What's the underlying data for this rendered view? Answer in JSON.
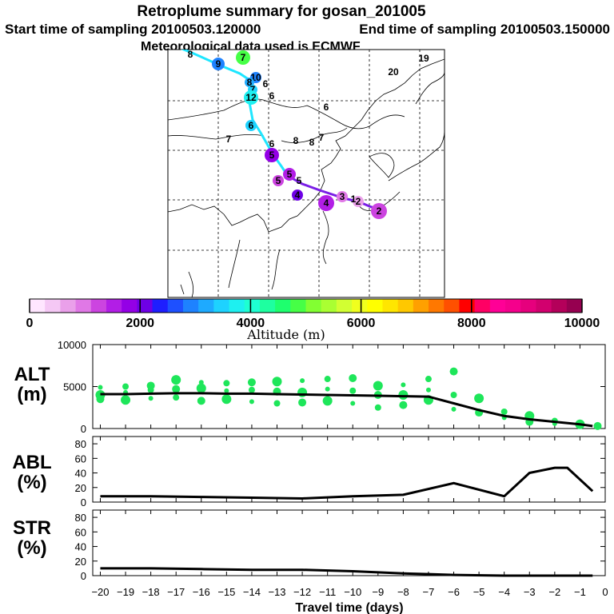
{
  "header": {
    "title": "Retroplume summary for gosan_201005",
    "start_time": "Start time of sampling 20100503.120000",
    "end_time": "End time of sampling 20100503.150000",
    "meteo": "Meteorological data used is ECMWF"
  },
  "colorbar": {
    "label": "Altitude (m)",
    "ticks": [
      "0",
      "2000",
      "4000",
      "6000",
      "8000",
      "10000"
    ],
    "colors": [
      "#ffe6ff",
      "#f5c8f5",
      "#eaa0ea",
      "#e078e6",
      "#cc44e0",
      "#b21ee6",
      "#9400e6",
      "#6e00e6",
      "#1e1eff",
      "#1e50ff",
      "#1e82ff",
      "#1eaaff",
      "#1ed2ff",
      "#1ef0f0",
      "#1effd2",
      "#1effa0",
      "#1eff6e",
      "#46ff46",
      "#82ff32",
      "#aaff32",
      "#d2ff32",
      "#f0ff1e",
      "#ffff00",
      "#ffe600",
      "#ffc800",
      "#ffa000",
      "#ff7800",
      "#ff5000",
      "#ff0000",
      "#ff0064",
      "#ff0096",
      "#f5008c",
      "#e6007d",
      "#d2006e",
      "#b4005a",
      "#960050"
    ]
  },
  "map": {
    "markers": [
      {
        "t": "8",
        "c": "#1ef0f0"
      },
      {
        "t": "7",
        "c": "#46ff46"
      },
      {
        "t": "9",
        "c": "#1e82ff"
      },
      {
        "t": "10",
        "c": "#1e82ff"
      },
      {
        "t": "8",
        "c": "#1eaaff"
      },
      {
        "t": "6",
        "c": "#1eff6e"
      },
      {
        "t": "7",
        "c": "#1ed2ff"
      },
      {
        "t": "12",
        "c": "#1ef0f0"
      },
      {
        "t": "6",
        "c": "#1eaaff"
      },
      {
        "t": "6",
        "c": "#1ed2ff"
      },
      {
        "t": "6",
        "c": "#1ed2ff"
      },
      {
        "t": "5",
        "c": "#9400e6"
      },
      {
        "t": "5",
        "c": "#b21ee6"
      },
      {
        "t": "5",
        "c": "#cc44e0"
      },
      {
        "t": "5",
        "c": "#cc44e0"
      },
      {
        "t": "4",
        "c": "#6e00e6"
      },
      {
        "t": "4",
        "c": "#b21ee6"
      },
      {
        "t": "3",
        "c": "#e078e6"
      },
      {
        "t": "2",
        "c": "#eaa0ea"
      },
      {
        "t": "2",
        "c": "#cc44e0"
      },
      {
        "t": "1",
        "c": "#f5c8f5"
      },
      {
        "t": "6",
        "c": "#1ef0f0"
      },
      {
        "t": "8",
        "c": "#1e82ff"
      },
      {
        "t": "8",
        "c": "#1ed2ff"
      },
      {
        "t": "7",
        "c": "#1ed2ff"
      },
      {
        "t": "7",
        "c": "#1ed2ff"
      },
      {
        "t": "20",
        "c": "#82ff32"
      },
      {
        "t": "19",
        "c": "#82ff32"
      }
    ]
  },
  "chart_data": [
    {
      "type": "scatter",
      "title": "ALT",
      "ylabel": "ALT (m)",
      "ylabel_top": "ALT",
      "ylabel_bottom": "(m)",
      "xlabel": "Travel time (days)",
      "xlim": [
        -20.3,
        0
      ],
      "ylim": [
        0,
        10000
      ],
      "yticks": [
        "10000",
        "5000",
        "0"
      ],
      "line": {
        "x": [
          -20,
          -19,
          -18,
          -17,
          -16,
          -15,
          -14,
          -13,
          -12,
          -11,
          -10,
          -9,
          -8,
          -7,
          -6,
          -5,
          -4,
          -3,
          -2,
          -1,
          -0.5
        ],
        "y": [
          4100,
          4100,
          4150,
          4200,
          4200,
          4150,
          4150,
          4100,
          4050,
          4000,
          3950,
          3900,
          3850,
          3800,
          3000,
          2200,
          1500,
          1100,
          800,
          500,
          300
        ]
      },
      "points": [
        {
          "x": -20,
          "y": 4900
        },
        {
          "x": -20,
          "y": 4000
        },
        {
          "x": -20,
          "y": 3500
        },
        {
          "x": -19,
          "y": 5000
        },
        {
          "x": -19,
          "y": 4300
        },
        {
          "x": -19,
          "y": 3400
        },
        {
          "x": -18,
          "y": 5100
        },
        {
          "x": -18,
          "y": 4600
        },
        {
          "x": -18,
          "y": 3600
        },
        {
          "x": -17,
          "y": 5800
        },
        {
          "x": -17,
          "y": 4700
        },
        {
          "x": -17,
          "y": 3700
        },
        {
          "x": -16,
          "y": 5500
        },
        {
          "x": -16,
          "y": 4800
        },
        {
          "x": -16,
          "y": 3300
        },
        {
          "x": -15,
          "y": 5400
        },
        {
          "x": -15,
          "y": 4500
        },
        {
          "x": -15,
          "y": 3500
        },
        {
          "x": -14,
          "y": 5500
        },
        {
          "x": -14,
          "y": 4600
        },
        {
          "x": -14,
          "y": 3200
        },
        {
          "x": -13,
          "y": 5600
        },
        {
          "x": -13,
          "y": 4400
        },
        {
          "x": -13,
          "y": 3000
        },
        {
          "x": -12,
          "y": 5700
        },
        {
          "x": -12,
          "y": 4300
        },
        {
          "x": -12,
          "y": 3100
        },
        {
          "x": -11,
          "y": 5900
        },
        {
          "x": -11,
          "y": 4700
        },
        {
          "x": -11,
          "y": 3300
        },
        {
          "x": -10,
          "y": 6000
        },
        {
          "x": -10,
          "y": 4500
        },
        {
          "x": -10,
          "y": 3000
        },
        {
          "x": -9,
          "y": 5100
        },
        {
          "x": -9,
          "y": 4000
        },
        {
          "x": -9,
          "y": 2500
        },
        {
          "x": -8,
          "y": 5200
        },
        {
          "x": -8,
          "y": 4000
        },
        {
          "x": -8,
          "y": 2800
        },
        {
          "x": -7,
          "y": 5900
        },
        {
          "x": -7,
          "y": 4600
        },
        {
          "x": -7,
          "y": 3400
        },
        {
          "x": -6,
          "y": 6800
        },
        {
          "x": -6,
          "y": 4000
        },
        {
          "x": -6,
          "y": 2300
        },
        {
          "x": -5,
          "y": 3600
        },
        {
          "x": -5,
          "y": 1900
        },
        {
          "x": -4,
          "y": 2000
        },
        {
          "x": -4,
          "y": 1300
        },
        {
          "x": -3,
          "y": 1500
        },
        {
          "x": -3,
          "y": 800
        },
        {
          "x": -2,
          "y": 900
        },
        {
          "x": -2,
          "y": 600
        },
        {
          "x": -1,
          "y": 500
        },
        {
          "x": -0.3,
          "y": 300
        }
      ]
    },
    {
      "type": "line",
      "title": "ABL",
      "ylabel": "ABL (%)",
      "ylabel_top": "ABL",
      "ylabel_bottom": "(%)",
      "xlim": [
        -20.3,
        0
      ],
      "ylim": [
        0,
        90
      ],
      "yticks": [
        "80",
        "60",
        "40",
        "20",
        "0"
      ],
      "x": [
        -20,
        -18,
        -16,
        -14,
        -12,
        -10,
        -8,
        -6,
        -4,
        -3,
        -2,
        -1.5,
        -0.5
      ],
      "y": [
        8,
        8,
        7,
        6,
        5,
        8,
        10,
        26,
        8,
        40,
        47,
        47,
        15
      ]
    },
    {
      "type": "line",
      "title": "STR",
      "ylabel": "STR (%)",
      "ylabel_top": "STR",
      "ylabel_bottom": "(%)",
      "xlim": [
        -20.3,
        0
      ],
      "ylim": [
        0,
        90
      ],
      "yticks": [
        "80",
        "60",
        "40",
        "20",
        "0"
      ],
      "x": [
        -20,
        -18,
        -16,
        -14,
        -12,
        -10,
        -8,
        -7,
        -6,
        -4,
        -2,
        -0.5
      ],
      "y": [
        10,
        10,
        9,
        8,
        8,
        6,
        3,
        2,
        1,
        0,
        0,
        0
      ]
    }
  ],
  "xaxis": {
    "ticks": [
      "−20",
      "−19",
      "−18",
      "−17",
      "−16",
      "−15",
      "−14",
      "−13",
      "−12",
      "−11",
      "−10",
      "−9",
      "−8",
      "−7",
      "−6",
      "−5",
      "−4",
      "−3",
      "−2",
      "−1",
      "0"
    ],
    "label": "Travel time (days)"
  }
}
